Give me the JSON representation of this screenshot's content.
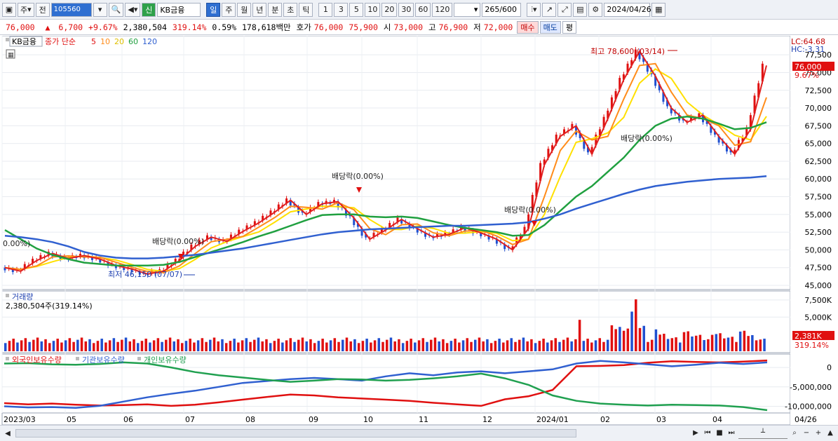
{
  "toolbar": {
    "mode_label": "주",
    "prev_label": "전",
    "code_value": "105560",
    "credit_label": "신",
    "stock_name": "KB금융",
    "periods": [
      "일",
      "주",
      "월",
      "년",
      "분",
      "초",
      "틱"
    ],
    "active_period": "일",
    "intervals": [
      "1",
      "3",
      "5",
      "10",
      "20",
      "30",
      "60",
      "120"
    ],
    "count_value": "265",
    "count_max": "/600",
    "date_value": "2024/04/26"
  },
  "info": {
    "price": "76,000",
    "arrow": "▲",
    "change": "6,700",
    "change_pct": "+9.67%",
    "volume": "2,380,504",
    "volume_pct": "319.14%",
    "turnover_pct": "0.59%",
    "amount": "178,618백만",
    "quote_label": "호가",
    "ask": "76,000",
    "bid": "75,900",
    "open_label": "시",
    "open": "73,000",
    "high_label": "고",
    "high": "76,900",
    "low_label": "저",
    "low": "72,000",
    "buy_label": "매수",
    "sell_label": "매도",
    "eval_label": "평"
  },
  "price_legend": {
    "name": "KB금융",
    "type": "종가 단순",
    "ma5": "5",
    "ma10": "10",
    "ma20": "20",
    "ma60": "60",
    "ma120": "120"
  },
  "price_panel": {
    "lc": "LC:64.68",
    "hc": "HC:-3.31",
    "current_tag": "76,000",
    "current_pct": "9.67%",
    "annot_high": "최고 78,600 (03/14)",
    "annot_low": "최저 46,150 (07/07)",
    "annot_div": "배당락(0.00%)",
    "annot_div_left": "0.00%)"
  },
  "volume_legend": {
    "title": "거래량",
    "value": "2,380,504주(319.14%)",
    "current_tag": "2,381K",
    "current_pct": "319.14%"
  },
  "holder_legend": {
    "foreign": "외국인보유수량",
    "institution": "기관보유수량",
    "individual": "개인보유수량"
  },
  "colors": {
    "candle_up": "#e01010",
    "candle_down": "#2050d0",
    "ma5": "#e02020",
    "ma10": "#ff8c1a",
    "ma20": "#ffe000",
    "ma60": "#20a040",
    "ma120": "#3060d0",
    "foreign": "#e01010",
    "institution": "#3060d0",
    "individual": "#20a050"
  },
  "chart_data": [
    {
      "type": "line",
      "title": "KB금융 일봉",
      "y_ticks": [
        "77,500",
        "75,000",
        "72,500",
        "70,000",
        "67,500",
        "65,000",
        "62,500",
        "60,000",
        "57,500",
        "55,000",
        "52,500",
        "50,000",
        "47,500",
        "45,000"
      ],
      "ylim": [
        45000,
        79000
      ],
      "x_ticks": [
        "2023/03",
        "05",
        "06",
        "07",
        "08",
        "09",
        "10",
        "11",
        "12",
        "2024/01",
        "02",
        "03",
        "04",
        "04/26"
      ],
      "series": [
        {
          "name": "종가",
          "values": [
            47500,
            47000,
            48500,
            49500,
            48800,
            49200,
            48700,
            47800,
            47300,
            46600,
            47000,
            48500,
            50500,
            51800,
            51200,
            52600,
            53800,
            55300,
            57000,
            55000,
            56500,
            56800,
            54500,
            51500,
            52800,
            54300,
            53000,
            51800,
            52200,
            53100,
            52400,
            51500,
            50000,
            53000,
            62000,
            66000,
            67500,
            63500,
            68500,
            74000,
            78000,
            74500,
            70000,
            68000,
            69000,
            66000,
            63500,
            67000,
            76000
          ]
        },
        {
          "name": "60",
          "values": [
            52800,
            51500,
            50200,
            49300,
            48700,
            48200,
            48000,
            47800,
            47800,
            47800,
            47900,
            48300,
            49000,
            49700,
            50400,
            51100,
            51900,
            52600,
            53400,
            54200,
            54900,
            55000,
            55000,
            54700,
            54600,
            54700,
            54500,
            54000,
            53500,
            53100,
            52800,
            52500,
            52000,
            52100,
            53500,
            55500,
            57500,
            59000,
            61000,
            63000,
            65500,
            67500,
            68500,
            68800,
            68500,
            67800,
            67000,
            67200,
            68000
          ]
        },
        {
          "name": "120",
          "values": [
            52000,
            51800,
            51500,
            51100,
            50500,
            49700,
            49200,
            48900,
            48800,
            48800,
            48900,
            49100,
            49300,
            49600,
            49900,
            50200,
            50600,
            51000,
            51400,
            51800,
            52200,
            52500,
            52700,
            52900,
            53000,
            53100,
            53200,
            53300,
            53400,
            53400,
            53500,
            53600,
            53700,
            53900,
            54400,
            55000,
            55800,
            56500,
            57200,
            57900,
            58500,
            59000,
            59300,
            59600,
            59800,
            60000,
            60100,
            60200,
            60400
          ]
        }
      ]
    },
    {
      "type": "bar",
      "title": "거래량",
      "y_ticks": [
        "7,500K",
        "5,000K"
      ],
      "ylim": [
        0,
        8000
      ]
    },
    {
      "type": "line",
      "title": "보유수량",
      "y_ticks": [
        "0",
        "-5,000,000",
        "-10,000,000"
      ],
      "ylim": [
        -11000000,
        2000000
      ],
      "series": [
        {
          "name": "외국인보유수량",
          "values": [
            -9200000,
            -9500000,
            -9300000,
            -9600000,
            -9800000,
            -9700000,
            -9500000,
            -9900000,
            -9600000,
            -9000000,
            -8300000,
            -7600000,
            -7000000,
            -7200000,
            -7700000,
            -8000000,
            -8300000,
            -8600000,
            -9100000,
            -9500000,
            -9900000,
            -8200000,
            -7400000,
            -5800000,
            300000,
            400000,
            600000,
            1200000,
            1600000,
            1400000,
            1300000,
            1500000,
            1800000
          ]
        },
        {
          "name": "기관보유수량",
          "values": [
            -10000000,
            -10300000,
            -10200000,
            -10400000,
            -9900000,
            -8800000,
            -7700000,
            -6800000,
            -6000000,
            -5000000,
            -4000000,
            -3500000,
            -3000000,
            -2700000,
            -3000000,
            -3400000,
            -2300000,
            -1500000,
            -2000000,
            -1300000,
            -1000000,
            -1500000,
            -1000000,
            -500000,
            1000000,
            1700000,
            1300000,
            800000,
            300000,
            700000,
            1200000,
            900000,
            1300000
          ]
        },
        {
          "name": "개인보유수량",
          "values": [
            1000000,
            1100000,
            800000,
            700000,
            900000,
            1300000,
            1000000,
            0,
            -1200000,
            -2000000,
            -2600000,
            -3200000,
            -3700000,
            -3400000,
            -3000000,
            -3100000,
            -3400000,
            -3200000,
            -2800000,
            -2300000,
            -1600000,
            -2800000,
            -4500000,
            -7200000,
            -8600000,
            -9300000,
            -9600000,
            -9800000,
            -9600000,
            -9700000,
            -9800000,
            -10200000,
            -11000000
          ]
        }
      ]
    }
  ]
}
